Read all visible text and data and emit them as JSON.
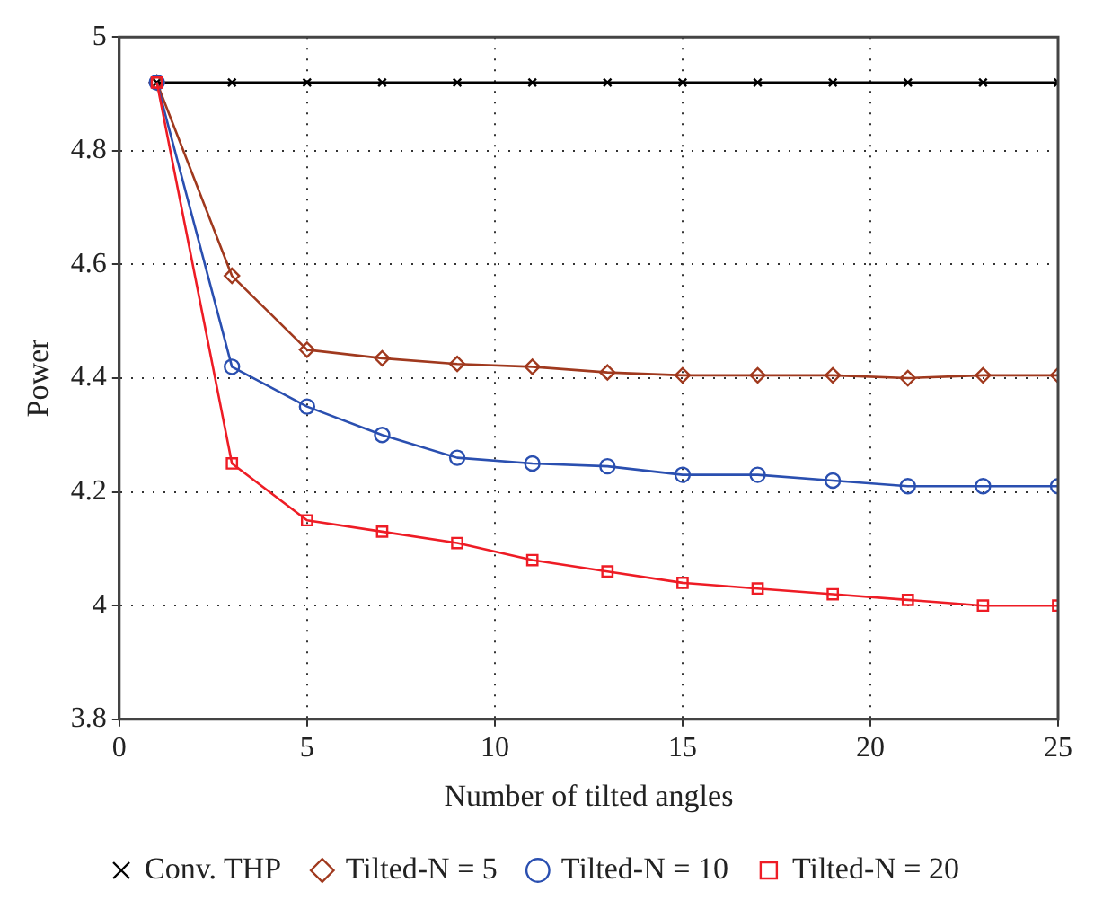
{
  "chart_data": {
    "type": "line",
    "xlabel": "Number of tilted angles",
    "ylabel": "Power",
    "x": [
      1,
      3,
      5,
      7,
      9,
      11,
      13,
      15,
      17,
      19,
      21,
      23,
      25
    ],
    "xlim": [
      0,
      25
    ],
    "xticks": [
      0,
      5,
      10,
      15,
      20,
      25
    ],
    "ylim": [
      3.8,
      5
    ],
    "yticks": [
      3.8,
      4,
      4.2,
      4.4,
      4.6,
      4.8,
      5
    ],
    "grid": true,
    "legend": "bottom",
    "line_style": "solid",
    "series": [
      {
        "name": "Conv. THP",
        "color": "#000000",
        "marker": "cross",
        "values": [
          4.92,
          4.92,
          4.92,
          4.92,
          4.92,
          4.92,
          4.92,
          4.92,
          4.92,
          4.92,
          4.92,
          4.92,
          4.92
        ]
      },
      {
        "name": "Tilted-N = 5",
        "color": "#a0391e",
        "marker": "diamond",
        "values": [
          4.92,
          4.58,
          4.45,
          4.435,
          4.425,
          4.42,
          4.41,
          4.405,
          4.405,
          4.405,
          4.4,
          4.405,
          4.405
        ]
      },
      {
        "name": "Tilted-N = 10",
        "color": "#2a4fb0",
        "marker": "circle",
        "values": [
          4.92,
          4.42,
          4.35,
          4.3,
          4.26,
          4.25,
          4.245,
          4.23,
          4.23,
          4.22,
          4.21,
          4.21,
          4.21
        ]
      },
      {
        "name": "Tilted-N = 20",
        "color": "#ee1c25",
        "marker": "square",
        "values": [
          4.92,
          4.25,
          4.15,
          4.13,
          4.11,
          4.08,
          4.06,
          4.04,
          4.03,
          4.02,
          4.01,
          4,
          4
        ]
      }
    ]
  }
}
